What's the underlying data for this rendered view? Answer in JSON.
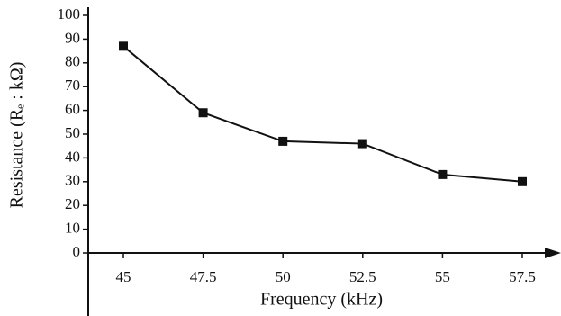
{
  "chart_data": {
    "type": "line",
    "x_label": "Frequency (kHz)",
    "y_label": "Resistance (Rₑ : kΩ)",
    "categories": [
      "45",
      "47.5",
      "50",
      "52.5",
      "55",
      "57.5"
    ],
    "series": [
      {
        "color": "#111111",
        "values": [
          87,
          59,
          47,
          46,
          33,
          30
        ]
      }
    ],
    "ylim": [
      0,
      100
    ],
    "yticks": [
      0,
      10,
      20,
      30,
      40,
      50,
      60,
      70,
      80,
      90,
      100
    ]
  }
}
